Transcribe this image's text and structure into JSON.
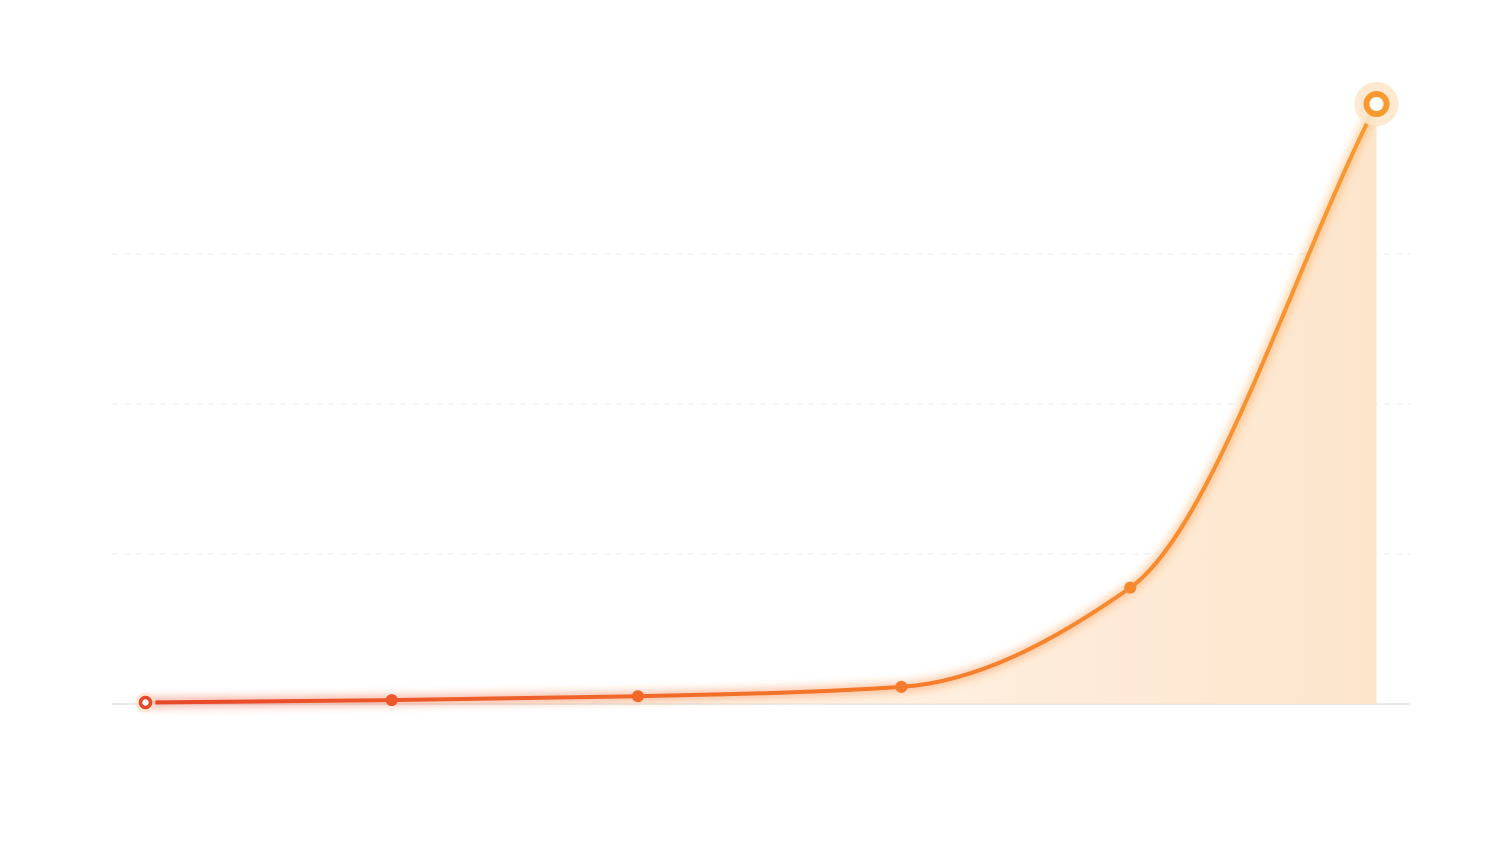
{
  "chart_data": {
    "type": "area",
    "title": "",
    "xlabel": "",
    "ylabel": "",
    "x": [
      0,
      1,
      2,
      3.07,
      4,
      5
    ],
    "values": [
      0.5,
      1.3,
      2.6,
      5.7,
      38.8,
      200
    ],
    "xlim": [
      -0.136,
      5.136
    ],
    "ylim": [
      0,
      200
    ],
    "grid": true,
    "gridline_values": [
      50,
      100,
      150
    ],
    "legend": "none",
    "highlight_last_point": true,
    "colors": {
      "line_start": "#e8462a",
      "line_mid": "#f47a2c",
      "line_end": "#f99a30",
      "fill": "#fde5cc",
      "grid": "#ececec",
      "baseline": "#e4e4e4"
    }
  }
}
